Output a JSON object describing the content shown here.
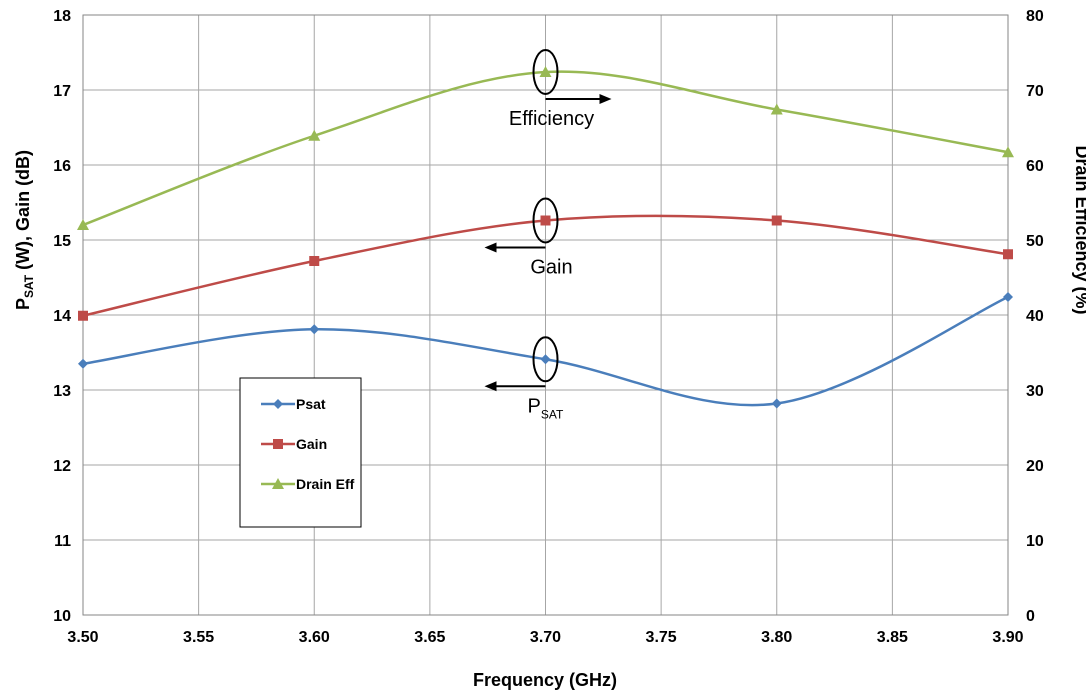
{
  "chart_data": {
    "type": "line",
    "x": [
      3.5,
      3.6,
      3.7,
      3.8,
      3.9
    ],
    "xlabel": "Frequency (GHz)",
    "xlim": [
      3.5,
      3.9
    ],
    "xticks": [
      "3.50",
      "3.55",
      "3.60",
      "3.65",
      "3.70",
      "3.75",
      "3.80",
      "3.85",
      "3.90"
    ],
    "ylabel_left": {
      "main": "P",
      "sub": "SAT",
      "rest": " (W), Gain (dB)"
    },
    "ylim_left": [
      10,
      18
    ],
    "yticks_left": [
      "10",
      "11",
      "12",
      "13",
      "14",
      "15",
      "16",
      "17",
      "18"
    ],
    "ylabel_right": "Drain Efficiency (%)",
    "ylim_right": [
      0,
      80
    ],
    "yticks_right": [
      "0",
      "10",
      "20",
      "30",
      "40",
      "50",
      "60",
      "70",
      "80"
    ],
    "grid": true,
    "legend_position": "lower-left",
    "series": [
      {
        "name": "Psat",
        "axis": "left",
        "color": "#4a7ebb",
        "marker": "diamond",
        "values": [
          13.35,
          13.81,
          13.41,
          12.82,
          14.24
        ]
      },
      {
        "name": "Gain",
        "axis": "left",
        "color": "#be4b48",
        "marker": "square",
        "values": [
          13.99,
          14.72,
          15.26,
          15.26,
          14.81
        ]
      },
      {
        "name": "Drain Eff",
        "axis": "right",
        "color": "#98b954",
        "marker": "triangle",
        "values": [
          52.0,
          63.9,
          72.4,
          67.4,
          61.7
        ]
      }
    ],
    "annotations": [
      {
        "text": "Efficiency",
        "series": "Drain Eff",
        "x": 3.7,
        "arrow": "right"
      },
      {
        "text": "Gain",
        "series": "Gain",
        "x": 3.7,
        "arrow": "left"
      },
      {
        "text": "P",
        "sub": "SAT",
        "series": "Psat",
        "x": 3.7,
        "arrow": "left"
      }
    ]
  }
}
